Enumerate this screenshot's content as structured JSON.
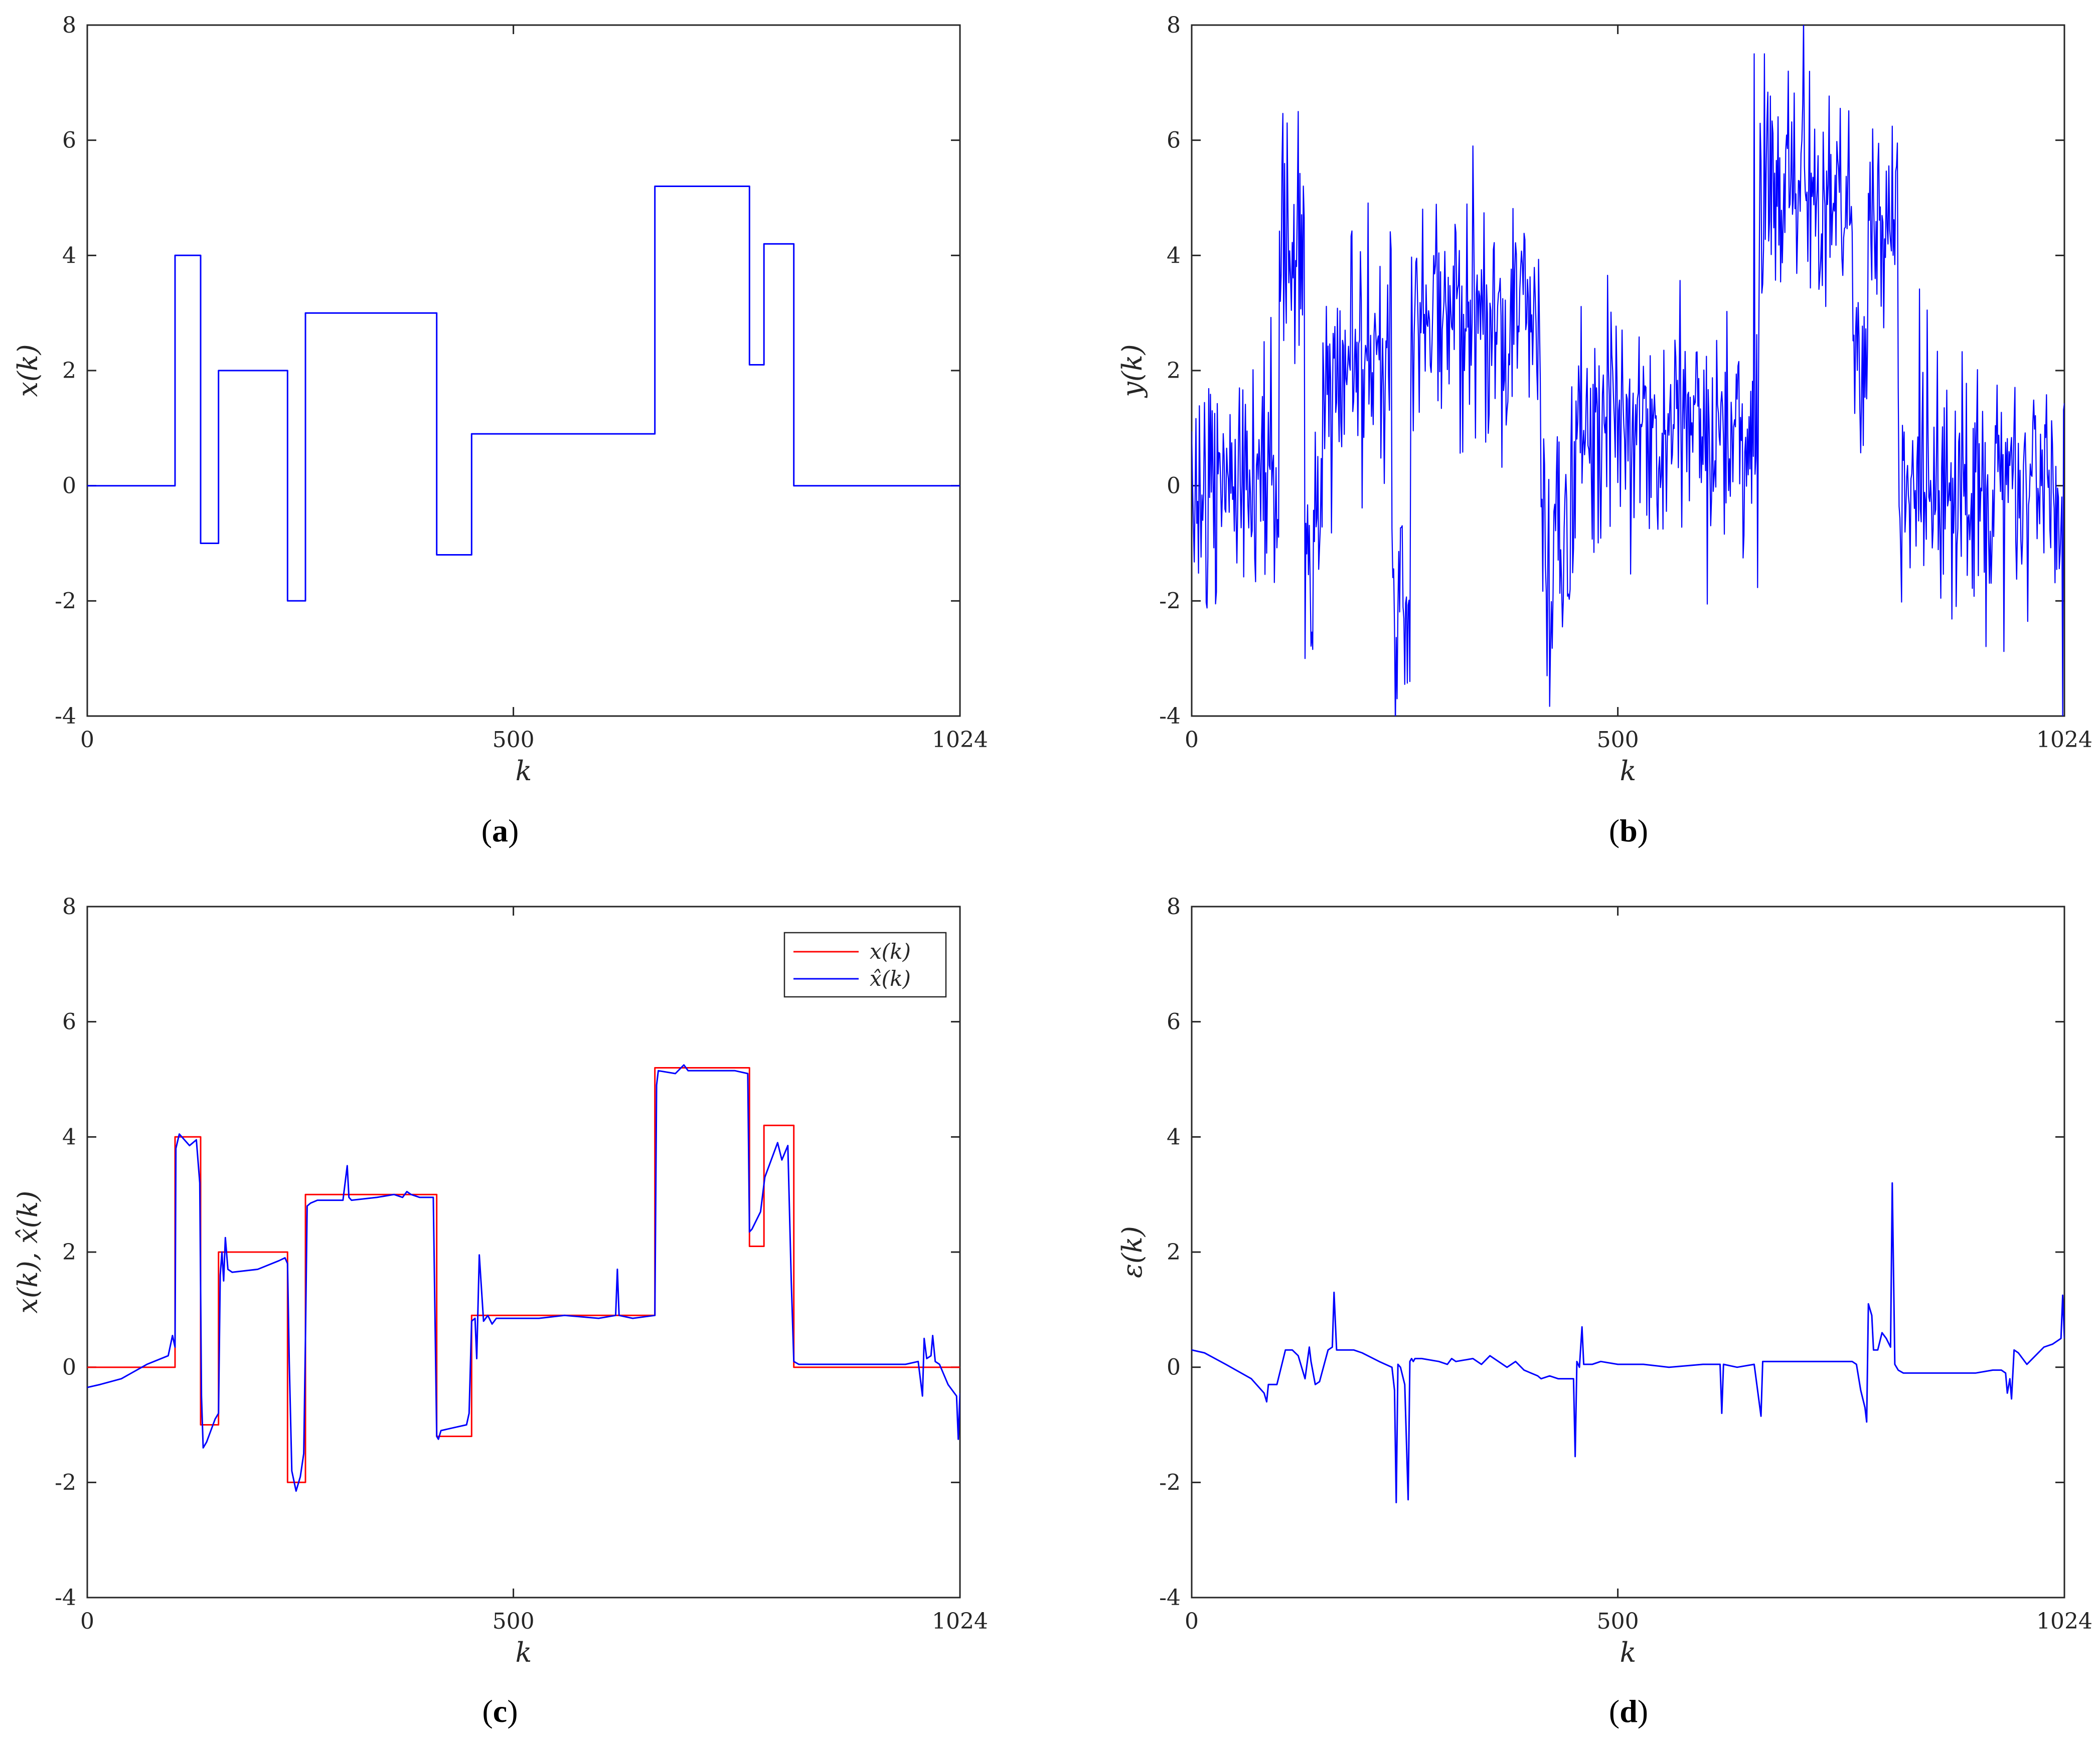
{
  "colors": {
    "series_blue": "#0000ff",
    "series_red": "#ff0000",
    "axes": "#262626",
    "background": "#ffffff"
  },
  "chart_data": [
    {
      "id": "a",
      "type": "line",
      "caption": "a",
      "xlabel": "k",
      "ylabel": "x(k)",
      "xlim": [
        0,
        1024
      ],
      "ylim": [
        -4,
        8
      ],
      "xticks": [
        0,
        500,
        1024
      ],
      "yticks": [
        -4,
        -2,
        0,
        2,
        4,
        6,
        8
      ],
      "series": [
        {
          "name": "x(k)",
          "color": "#0000ff",
          "kind": "step",
          "x": [
            0,
            103,
            133,
            154,
            235,
            256,
            410,
            451,
            666,
            777,
            794,
            829,
            1024
          ],
          "y": [
            0,
            4,
            -1,
            2,
            -2,
            3,
            -1.2,
            0.9,
            5.2,
            2.1,
            4.2,
            0,
            0
          ]
        }
      ]
    },
    {
      "id": "b",
      "type": "line",
      "caption": "b",
      "xlabel": "k",
      "ylabel": "y(k)",
      "xlim": [
        0,
        1024
      ],
      "ylim": [
        -4,
        8
      ],
      "xticks": [
        0,
        500,
        1024
      ],
      "yticks": [
        -4,
        -2,
        0,
        2,
        4,
        6,
        8
      ],
      "series": [
        {
          "name": "y(k)",
          "color": "#0000ff",
          "kind": "noisy",
          "x": [
            0,
            103,
            133,
            154,
            235,
            256,
            410,
            451,
            666,
            777,
            794,
            829,
            1024
          ],
          "y": [
            0,
            4,
            -1,
            2,
            -2,
            3,
            -1.2,
            0.9,
            5.2,
            2.1,
            4.2,
            0,
            0
          ],
          "noise_std": 1.0,
          "visible_peaks": [
            [
              112,
              6.3
            ],
            [
              125,
              6.5
            ],
            [
              330,
              5.9
            ],
            [
              660,
              7.5
            ],
            [
              672,
              7.5
            ],
            [
              700,
              7.2
            ]
          ],
          "visible_troughs": [
            [
              133,
              -3.0
            ],
            [
              241,
              -3.7
            ],
            [
              256,
              -3.4
            ],
            [
              417,
              -3.3
            ],
            [
              1022,
              -4.0
            ]
          ]
        }
      ]
    },
    {
      "id": "c",
      "type": "line",
      "caption": "c",
      "xlabel": "k",
      "ylabel": "x(k), x̂(k)",
      "xlim": [
        0,
        1024
      ],
      "ylim": [
        -4,
        8
      ],
      "xticks": [
        0,
        500,
        1024
      ],
      "yticks": [
        -4,
        -2,
        0,
        2,
        4,
        6,
        8
      ],
      "legend": {
        "position": "top-right",
        "entries": [
          "x(k)",
          "x̂(k)"
        ]
      },
      "series": [
        {
          "name": "x(k)",
          "color": "#ff0000",
          "kind": "step",
          "x": [
            0,
            103,
            133,
            154,
            235,
            256,
            410,
            451,
            666,
            777,
            794,
            829,
            1024
          ],
          "y": [
            0,
            4,
            -1,
            2,
            -2,
            3,
            -1.2,
            0.9,
            5.2,
            2.1,
            4.2,
            0,
            0
          ]
        },
        {
          "name": "x̂(k)",
          "color": "#0000ff",
          "kind": "polyline",
          "x": [
            0,
            15,
            40,
            70,
            95,
            100,
            103,
            104,
            108,
            120,
            128,
            132,
            134,
            136,
            140,
            150,
            154,
            156,
            158,
            160,
            162,
            165,
            170,
            200,
            225,
            232,
            235,
            237,
            240,
            245,
            250,
            254,
            256,
            258,
            262,
            270,
            300,
            305,
            307,
            310,
            340,
            360,
            370,
            375,
            380,
            390,
            406,
            410,
            412,
            415,
            430,
            445,
            448,
            451,
            455,
            457,
            460,
            465,
            470,
            475,
            480,
            500,
            530,
            560,
            600,
            620,
            622,
            624,
            640,
            666,
            668,
            670,
            690,
            700,
            705,
            720,
            760,
            775,
            777,
            780,
            790,
            795,
            800,
            805,
            810,
            815,
            822,
            826,
            829,
            835,
            860,
            890,
            920,
            960,
            975,
            980,
            982,
            985,
            990,
            992,
            995,
            1000,
            1010,
            1020,
            1022,
            1024
          ],
          "y": [
            -0.35,
            -0.3,
            -0.2,
            0.05,
            0.2,
            0.55,
            0.35,
            3.8,
            4.05,
            3.85,
            3.95,
            3.2,
            -0.5,
            -1.4,
            -1.3,
            -0.9,
            -0.8,
            1.6,
            2.0,
            1.5,
            2.25,
            1.7,
            1.65,
            1.7,
            1.85,
            1.9,
            1.8,
            0.1,
            -1.8,
            -2.15,
            -1.9,
            -1.5,
            0.5,
            2.8,
            2.85,
            2.9,
            2.9,
            3.5,
            2.95,
            2.9,
            2.95,
            3.0,
            2.95,
            3.05,
            3.0,
            2.95,
            2.95,
            -1.2,
            -1.25,
            -1.1,
            -1.05,
            -1.0,
            -0.8,
            0.8,
            0.85,
            0.15,
            1.95,
            0.8,
            0.9,
            0.75,
            0.85,
            0.85,
            0.85,
            0.9,
            0.85,
            0.9,
            1.7,
            0.9,
            0.85,
            0.9,
            4.9,
            5.15,
            5.1,
            5.25,
            5.15,
            5.15,
            5.15,
            5.1,
            2.35,
            2.4,
            2.7,
            3.3,
            3.5,
            3.7,
            3.9,
            3.6,
            3.85,
            1.5,
            0.1,
            0.05,
            0.05,
            0.05,
            0.05,
            0.05,
            0.1,
            -0.5,
            0.5,
            0.15,
            0.2,
            0.55,
            0.1,
            0.05,
            -0.3,
            -0.5,
            -1.25,
            -0.45
          ]
        }
      ]
    },
    {
      "id": "d",
      "type": "line",
      "caption": "d",
      "xlabel": "k",
      "ylabel": "ε(k)",
      "xlim": [
        0,
        1024
      ],
      "ylim": [
        -4,
        8
      ],
      "xticks": [
        0,
        500,
        1024
      ],
      "yticks": [
        -4,
        -2,
        0,
        2,
        4,
        6,
        8
      ],
      "series": [
        {
          "name": "ε(k)",
          "color": "#0000ff",
          "kind": "polyline",
          "x": [
            0,
            15,
            40,
            70,
            85,
            88,
            90,
            100,
            110,
            118,
            125,
            133,
            138,
            140,
            145,
            150,
            160,
            165,
            167,
            170,
            180,
            190,
            200,
            220,
            235,
            238,
            240,
            242,
            245,
            250,
            254,
            256,
            258,
            260,
            262,
            270,
            290,
            300,
            305,
            310,
            330,
            340,
            350,
            360,
            370,
            380,
            390,
            406,
            410,
            420,
            430,
            448,
            450,
            452,
            455,
            458,
            460,
            470,
            480,
            500,
            530,
            560,
            600,
            620,
            622,
            624,
            640,
            660,
            668,
            670,
            690,
            700,
            720,
            760,
            775,
            780,
            785,
            790,
            792,
            794,
            796,
            798,
            800,
            805,
            810,
            815,
            820,
            822,
            825,
            829,
            835,
            860,
            890,
            920,
            940,
            950,
            955,
            957,
            960,
            962,
            965,
            970,
            980,
            990,
            1000,
            1010,
            1020,
            1022,
            1024
          ],
          "y": [
            0.3,
            0.25,
            0.05,
            -0.2,
            -0.45,
            -0.6,
            -0.3,
            -0.3,
            0.3,
            0.3,
            0.2,
            -0.2,
            0.35,
            0.1,
            -0.3,
            -0.25,
            0.3,
            0.35,
            1.3,
            0.3,
            0.3,
            0.3,
            0.25,
            0.1,
            0.0,
            -0.4,
            -2.35,
            0.05,
            0.0,
            -0.3,
            -2.3,
            0.1,
            0.15,
            0.1,
            0.15,
            0.15,
            0.1,
            0.05,
            0.15,
            0.1,
            0.15,
            0.05,
            0.2,
            0.1,
            0.0,
            0.1,
            -0.05,
            -0.15,
            -0.2,
            -0.15,
            -0.2,
            -0.2,
            -1.55,
            0.1,
            0.0,
            0.7,
            0.05,
            0.05,
            0.1,
            0.05,
            0.05,
            0.0,
            0.05,
            0.05,
            -0.8,
            0.05,
            0.0,
            0.05,
            -0.85,
            0.1,
            0.1,
            0.1,
            0.1,
            0.1,
            0.1,
            0.05,
            -0.4,
            -0.7,
            -0.95,
            1.1,
            1.0,
            0.9,
            0.3,
            0.3,
            0.6,
            0.5,
            0.35,
            3.2,
            0.05,
            -0.05,
            -0.1,
            -0.1,
            -0.1,
            -0.1,
            -0.05,
            -0.05,
            -0.1,
            -0.45,
            -0.2,
            -0.55,
            0.3,
            0.25,
            0.05,
            0.2,
            0.35,
            0.4,
            0.5,
            1.25,
            0.5
          ]
        }
      ]
    }
  ]
}
